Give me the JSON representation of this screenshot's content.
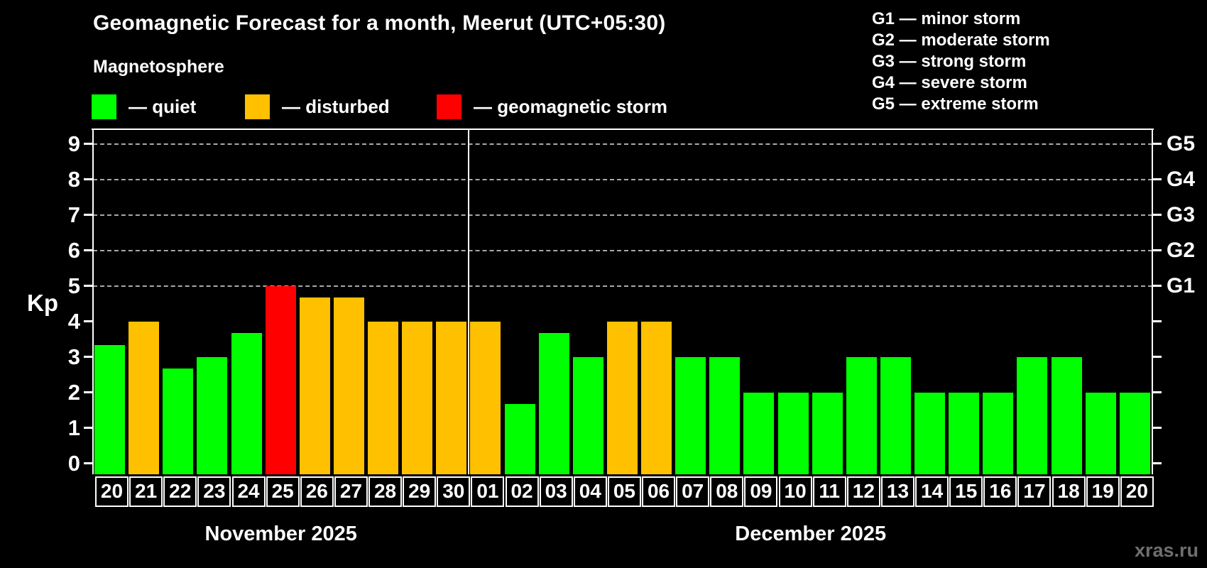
{
  "title": "Geomagnetic Forecast for a month, Meerut (UTC+05:30)",
  "legend": {
    "heading": "Magnetosphere",
    "items": [
      {
        "name": "quiet",
        "label": "— quiet",
        "color": "#00ff00"
      },
      {
        "name": "disturbed",
        "label": "— disturbed",
        "color": "#ffc000"
      },
      {
        "name": "storm",
        "label": "— geomagnetic storm",
        "color": "#ff0000"
      }
    ]
  },
  "storm_scale_legend": [
    "G1 — minor storm",
    "G2 — moderate storm",
    "G3 — strong storm",
    "G4 — severe storm",
    "G5 — extreme storm"
  ],
  "watermark": "xras.ru",
  "chart_data": {
    "type": "bar",
    "ylabel": "Kp",
    "ylim": [
      -0.3,
      9.4
    ],
    "yticks": [
      0,
      1,
      2,
      3,
      4,
      5,
      6,
      7,
      8,
      9
    ],
    "gridlines_at": [
      5,
      6,
      7,
      8,
      9
    ],
    "right_axis_labels": [
      {
        "kp": 5,
        "label": "G1"
      },
      {
        "kp": 6,
        "label": "G2"
      },
      {
        "kp": 7,
        "label": "G3"
      },
      {
        "kp": 8,
        "label": "G4"
      },
      {
        "kp": 9,
        "label": "G5"
      }
    ],
    "months": [
      {
        "label": "November 2025",
        "days": 11
      },
      {
        "label": "December 2025",
        "days": 20
      }
    ],
    "categories": [
      "20",
      "21",
      "22",
      "23",
      "24",
      "25",
      "26",
      "27",
      "28",
      "29",
      "30",
      "01",
      "02",
      "03",
      "04",
      "05",
      "06",
      "07",
      "08",
      "09",
      "10",
      "11",
      "12",
      "13",
      "14",
      "15",
      "16",
      "17",
      "18",
      "19",
      "20"
    ],
    "values": [
      3.33,
      4,
      2.67,
      3,
      3.67,
      5,
      4.67,
      4.67,
      4,
      4,
      4,
      4,
      1.67,
      3.67,
      3,
      4,
      4,
      3,
      3,
      2,
      2,
      2,
      3,
      3,
      2,
      2,
      2,
      3,
      3,
      2,
      2
    ],
    "statuses": [
      "quiet",
      "disturbed",
      "quiet",
      "quiet",
      "quiet",
      "storm",
      "disturbed",
      "disturbed",
      "disturbed",
      "disturbed",
      "disturbed",
      "disturbed",
      "quiet",
      "quiet",
      "quiet",
      "disturbed",
      "disturbed",
      "quiet",
      "quiet",
      "quiet",
      "quiet",
      "quiet",
      "quiet",
      "quiet",
      "quiet",
      "quiet",
      "quiet",
      "quiet",
      "quiet",
      "quiet",
      "quiet"
    ]
  }
}
